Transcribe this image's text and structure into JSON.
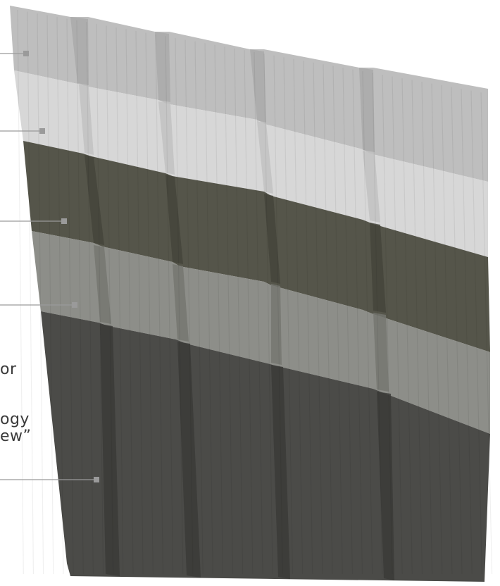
{
  "partial_text_lines": [
    "or",
    "ogy",
    "ew”"
  ],
  "layers": [
    {
      "color": "#bebebe",
      "rib": "#a9a9a9"
    },
    {
      "color": "#d7d7d7",
      "rib": "#c1c1c1"
    },
    {
      "color": "#55554a",
      "rib": "#43433a"
    },
    {
      "color": "#8d8e89",
      "rib": "#74756f"
    },
    {
      "color": "#4b4b48",
      "rib": "#393937"
    }
  ],
  "callout_color": "#9a9a9a"
}
